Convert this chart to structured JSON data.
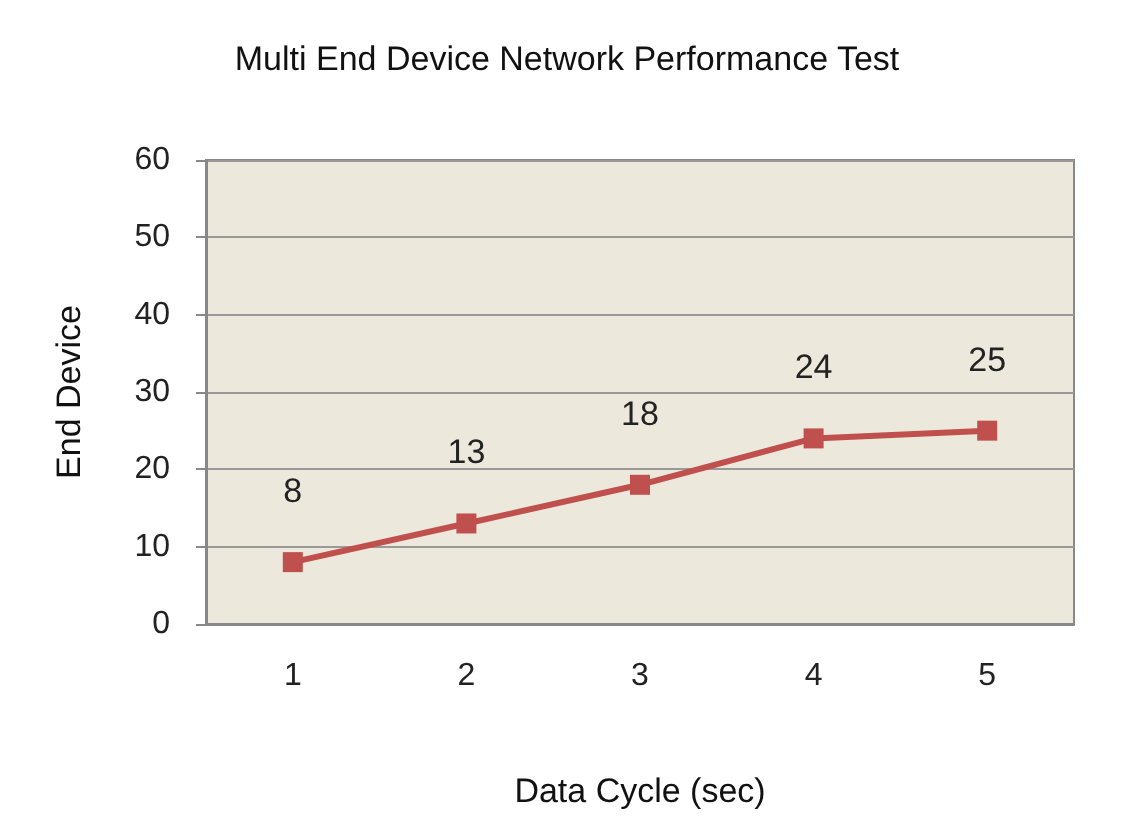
{
  "chart_data": {
    "type": "line",
    "title": "Multi End Device Network Performance Test",
    "xlabel": "Data Cycle (sec)",
    "ylabel": "End Device",
    "categories": [
      "1",
      "2",
      "3",
      "4",
      "5"
    ],
    "series": [
      {
        "color": "#c0504d",
        "values": [
          8,
          13,
          18,
          24,
          25
        ]
      }
    ],
    "ylim": [
      0,
      60
    ],
    "yticks": [
      0,
      10,
      20,
      30,
      40,
      50,
      60
    ],
    "grid": "y",
    "marker": "square",
    "line_style": "solid",
    "data_labels": true
  }
}
